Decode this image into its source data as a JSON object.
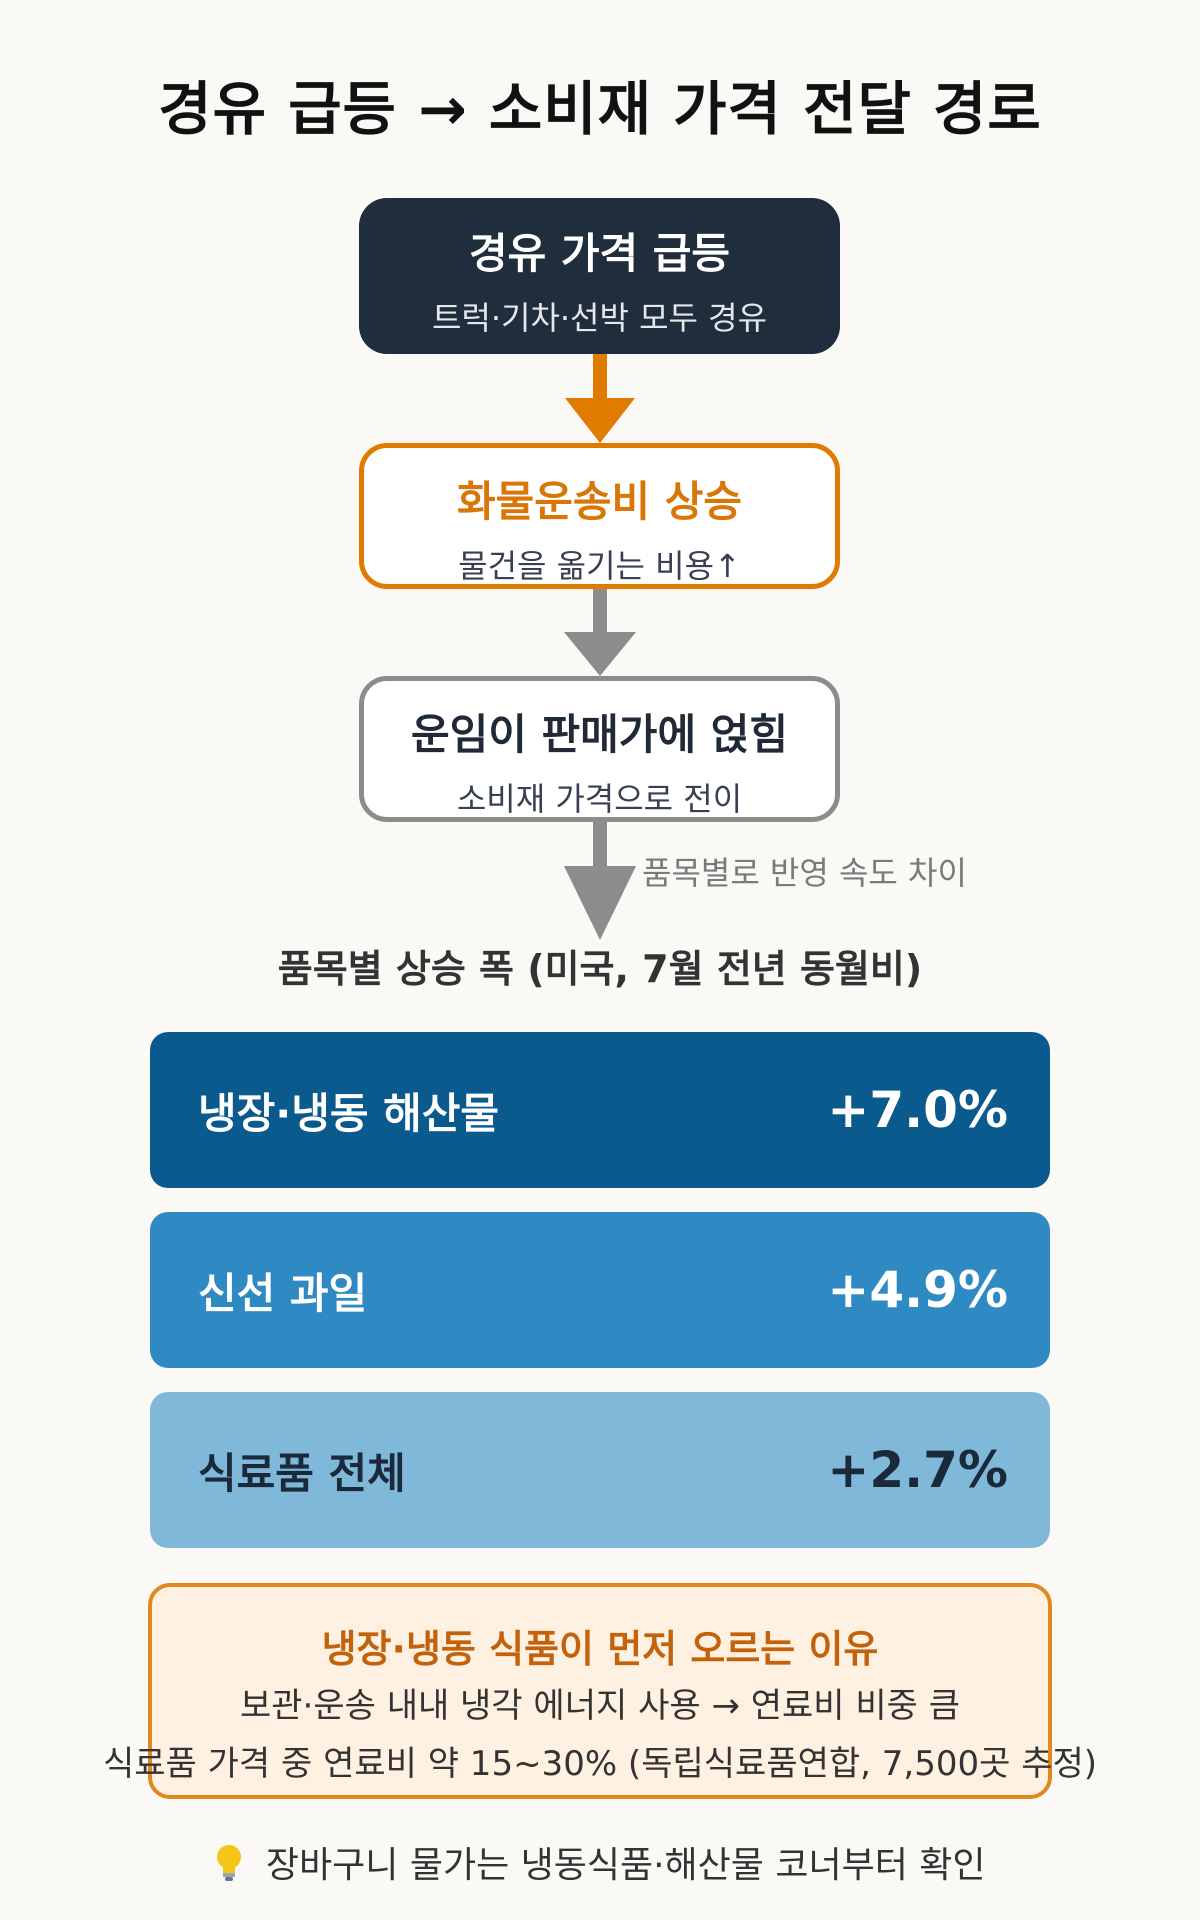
{
  "title": "경유 급등 → 소비재 가격 전달 경로",
  "flow": [
    {
      "title": "경유 가격 급등",
      "subtitle": "트럭·기차·선박 모두 경유"
    },
    {
      "title": "화물운송비 상승",
      "subtitle": "물건을 옮기는 비용↑"
    },
    {
      "title": "운임이 판매가에 얹힘",
      "subtitle": "소비재 가격으로 전이"
    }
  ],
  "arrow_note": "품목별로 반영 속도 차이",
  "section_title": "품목별 상승 폭 (미국, 7월 전년 동월비)",
  "items": [
    {
      "label": "냉장·냉동 해산물",
      "value": "+7.0%"
    },
    {
      "label": "신선 과일",
      "value": "+4.9%"
    },
    {
      "label": "식료품 전체",
      "value": "+2.7%"
    }
  ],
  "colors": {
    "dark_box": "#1f2d3d",
    "orange": "#e07b00",
    "gray": "#8c8c8c",
    "bar1": "#0b5a8e",
    "bar2": "#2f8ac4",
    "bar3": "#80b8da"
  },
  "note": {
    "title": "냉장·냉동 식품이 먼저 오르는 이유",
    "line1": "보관·운송 내내 냉각 에너지 사용 → 연료비 비중 큼",
    "line2": "식료품 가격 중 연료비 약 15~30% (독립식료품연합, 7,500곳 추정)"
  },
  "tip": {
    "icon": "lightbulb-icon",
    "text": "장바구니 물가는 냉동식품·해산물 코너부터 확인"
  }
}
